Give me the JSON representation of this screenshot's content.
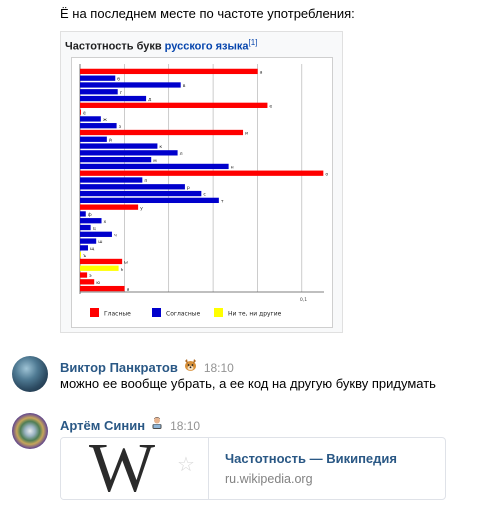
{
  "intro_message": {
    "text": "Ё на последнем месте по частоте употребления:"
  },
  "figure": {
    "caption_prefix": "Частотность букв ",
    "caption_link": "русского языка",
    "caption_ref": "[1]"
  },
  "chart_data": {
    "type": "bar",
    "orientation": "horizontal",
    "categories": [
      "а",
      "б",
      "в",
      "г",
      "д",
      "е",
      "ё",
      "ж",
      "з",
      "и",
      "й",
      "к",
      "л",
      "м",
      "н",
      "о",
      "п",
      "р",
      "с",
      "т",
      "у",
      "ф",
      "х",
      "ц",
      "ч",
      "ш",
      "щ",
      "ъ",
      "ы",
      "ь",
      "э",
      "ю",
      "я"
    ],
    "values": [
      0.0801,
      0.0159,
      0.0454,
      0.017,
      0.0298,
      0.0845,
      0.0004,
      0.0094,
      0.0165,
      0.0735,
      0.0121,
      0.0349,
      0.044,
      0.0321,
      0.067,
      0.1097,
      0.0281,
      0.0473,
      0.0547,
      0.0626,
      0.0262,
      0.0026,
      0.0097,
      0.0048,
      0.0144,
      0.0073,
      0.0036,
      0.0004,
      0.019,
      0.0174,
      0.0032,
      0.0064,
      0.0201
    ],
    "groups": [
      "v",
      "c",
      "c",
      "c",
      "c",
      "v",
      "v",
      "c",
      "c",
      "v",
      "c",
      "c",
      "c",
      "c",
      "c",
      "v",
      "c",
      "c",
      "c",
      "c",
      "v",
      "c",
      "c",
      "c",
      "c",
      "c",
      "c",
      "n",
      "v",
      "n",
      "v",
      "v",
      "v"
    ],
    "xlim": [
      0,
      0.11
    ],
    "x_tick_label": "0,1",
    "legend": [
      "Гласные",
      "Согласные",
      "Ни те, ни другие"
    ],
    "legend_position": "bottom",
    "grid": true,
    "colors": {
      "v": "#ff0000",
      "c": "#0000cc",
      "n": "#ffff00"
    }
  },
  "messages": [
    {
      "author": "Виктор Панкратов",
      "emoji": "dog-emoji",
      "time": "18:10",
      "text": "можно ее вообще убрать, а ее код на другую букву придумать"
    },
    {
      "author": "Артём Синин",
      "emoji": "man-technologist-emoji",
      "time": "18:10"
    }
  ],
  "link_card": {
    "logo_letter": "W",
    "title": "Частотность — Википедия",
    "domain": "ru.wikipedia.org"
  }
}
